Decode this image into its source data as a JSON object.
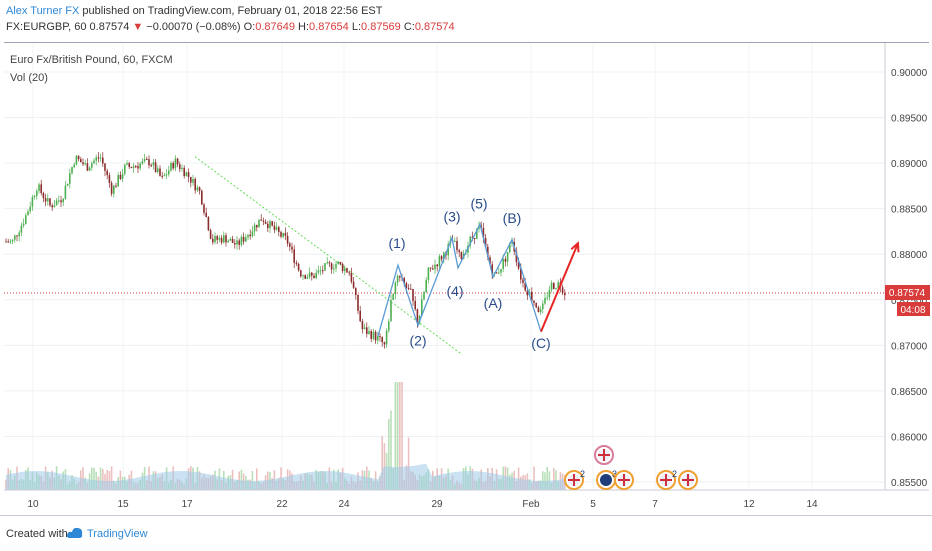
{
  "header": {
    "author": "Alex Turner FX",
    "published": " published on TradingView.com, February 01, 2018 22:56 EST",
    "symbol": "FX:EURGBP, 60",
    "last": " 0.87574",
    "arrow": "▼",
    "change": " −0.00070 (−0.08%)",
    "o_label": " O:",
    "o_val": "0.87649",
    "h_label": " H:",
    "h_val": "0.87654",
    "l_label": " L:",
    "l_val": "0.87569",
    "c_label": " C:",
    "c_val": "0.87574"
  },
  "legend": {
    "instrument": "Euro Fx/British Pound, 60, FXCM",
    "indicator": "Vol (20)"
  },
  "price_tag": {
    "price": "0.87574",
    "countdown": "04:08"
  },
  "footer": {
    "created_with": "Created with",
    "brand": "TradingView"
  },
  "colors": {
    "up": "#4caf50",
    "down": "#8b2b2b",
    "wave": "#5b9bd5",
    "label": "#2a4d8a",
    "trend": "#66dd55",
    "arrow": "#e82525",
    "price_line": "#d93a3a",
    "vol_ma": "#9ecbe8"
  },
  "chart_data": {
    "type": "candlestick",
    "price_scale": {
      "min": 0.853,
      "max": 0.903,
      "ticks": [
        "0.90000",
        "0.89500",
        "0.89000",
        "0.88500",
        "0.88000",
        "0.87500",
        "0.87000",
        "0.86500",
        "0.86000",
        "0.85500"
      ]
    },
    "x_ticks": [
      "10",
      "15",
      "17",
      "22",
      "24",
      "29",
      "Feb",
      "5",
      "7",
      "12",
      "14"
    ],
    "price_path": [
      [
        0,
        0.8815
      ],
      [
        12,
        0.8813
      ],
      [
        25,
        0.884
      ],
      [
        37,
        0.8875
      ],
      [
        50,
        0.8853
      ],
      [
        62,
        0.8862
      ],
      [
        75,
        0.8906
      ],
      [
        87,
        0.8896
      ],
      [
        100,
        0.8908
      ],
      [
        112,
        0.887
      ],
      [
        125,
        0.8895
      ],
      [
        137,
        0.8898
      ],
      [
        150,
        0.8902
      ],
      [
        162,
        0.8882
      ],
      [
        175,
        0.8902
      ],
      [
        187,
        0.8888
      ],
      [
        200,
        0.8868
      ],
      [
        212,
        0.8815
      ],
      [
        225,
        0.8818
      ],
      [
        237,
        0.881
      ],
      [
        250,
        0.8825
      ],
      [
        262,
        0.884
      ],
      [
        275,
        0.8826
      ],
      [
        287,
        0.8815
      ],
      [
        300,
        0.878
      ],
      [
        312,
        0.8775
      ],
      [
        325,
        0.8785
      ],
      [
        337,
        0.879
      ],
      [
        350,
        0.878
      ],
      [
        362,
        0.8718
      ],
      [
        375,
        0.871
      ],
      [
        385,
        0.87
      ],
      [
        392,
        0.8755
      ],
      [
        398,
        0.878
      ],
      [
        410,
        0.876
      ],
      [
        418,
        0.8725
      ],
      [
        428,
        0.878
      ],
      [
        440,
        0.8795
      ],
      [
        453,
        0.8815
      ],
      [
        460,
        0.8795
      ],
      [
        470,
        0.8815
      ],
      [
        480,
        0.883
      ],
      [
        488,
        0.8795
      ],
      [
        495,
        0.8775
      ],
      [
        505,
        0.8795
      ],
      [
        512,
        0.8816
      ],
      [
        522,
        0.877
      ],
      [
        532,
        0.8752
      ],
      [
        541,
        0.8735
      ],
      [
        550,
        0.8765
      ],
      [
        560,
        0.8768
      ],
      [
        565,
        0.8758
      ]
    ],
    "wave_path": [
      [
        378,
        0.871
      ],
      [
        398,
        0.8788
      ],
      [
        418,
        0.8722
      ],
      [
        452,
        0.8818
      ],
      [
        458,
        0.8785
      ],
      [
        480,
        0.8833
      ],
      [
        493,
        0.8775
      ],
      [
        512,
        0.8816
      ],
      [
        541,
        0.8715
      ]
    ],
    "wave_labels": [
      {
        "text": "(1)",
        "x": 397,
        "y": 0.8807
      },
      {
        "text": "(2)",
        "x": 418,
        "y": 0.87
      },
      {
        "text": "(3)",
        "x": 452,
        "y": 0.8836
      },
      {
        "text": "(4)",
        "x": 455,
        "y": 0.8754
      },
      {
        "text": "(5)",
        "x": 479,
        "y": 0.885
      },
      {
        "text": "(A)",
        "x": 493,
        "y": 0.8741
      },
      {
        "text": "(B)",
        "x": 512,
        "y": 0.8834
      },
      {
        "text": "(C)",
        "x": 541,
        "y": 0.8697
      }
    ],
    "trendline": [
      [
        195,
        0.8907
      ],
      [
        462,
        0.869
      ]
    ],
    "projection_arrow": [
      [
        541,
        0.8715
      ],
      [
        578,
        0.8812
      ]
    ],
    "volume_ma": "15-25% of volume pane",
    "event_badges": [
      {
        "icon": "uk-flag-icon",
        "count": "2",
        "x": 574,
        "row": "bottom"
      },
      {
        "icon": "uk-flag-icon",
        "count": "",
        "x": 604,
        "row": "top"
      },
      {
        "icon": "moon-flag-icon",
        "count": "3",
        "x": 606,
        "row": "bottom"
      },
      {
        "icon": "uk-flag-icon",
        "count": "",
        "x": 624,
        "row": "bottom"
      },
      {
        "icon": "uk-flag-icon",
        "count": "2",
        "x": 666,
        "row": "bottom"
      },
      {
        "icon": "uk-flag-icon",
        "count": "",
        "x": 688,
        "row": "bottom"
      }
    ]
  }
}
